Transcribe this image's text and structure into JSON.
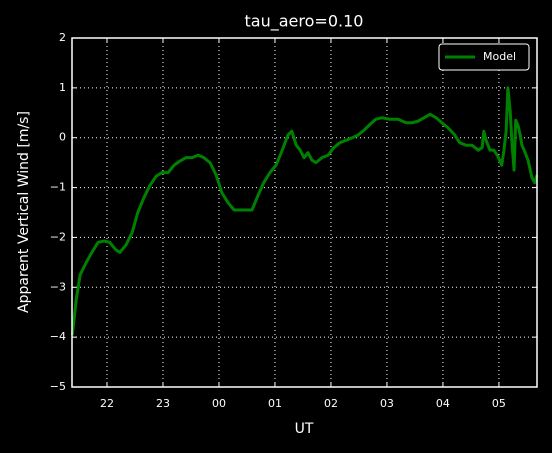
{
  "chart_data": {
    "type": "line",
    "title": "tau_aero=0.10",
    "xlabel": "UT",
    "ylabel": "Apparent Vertical Wind [m/s]",
    "x": [
      21.38,
      21.45,
      21.52,
      21.63,
      21.73,
      21.84,
      21.95,
      22.05,
      22.16,
      22.23,
      22.34,
      22.45,
      22.55,
      22.66,
      22.77,
      22.88,
      22.98,
      23.09,
      23.2,
      23.3,
      23.41,
      23.52,
      23.63,
      23.73,
      23.84,
      23.95,
      24.05,
      24.16,
      24.27,
      24.38,
      24.48,
      24.59,
      24.7,
      24.8,
      24.91,
      25.02,
      25.13,
      25.23,
      25.3,
      25.38,
      25.45,
      25.52,
      25.59,
      25.66,
      25.73,
      25.84,
      25.95,
      26.05,
      26.16,
      26.27,
      26.38,
      26.48,
      26.59,
      26.7,
      26.8,
      26.91,
      27.05,
      27.2,
      27.34,
      27.45,
      27.55,
      27.66,
      27.77,
      27.88,
      27.98,
      28.09,
      28.2,
      28.3,
      28.41,
      28.52,
      28.63,
      28.7,
      28.73,
      28.77,
      28.84,
      28.91,
      28.98,
      29.05,
      29.09,
      29.13,
      29.16,
      29.2,
      29.23,
      29.27,
      29.3,
      29.34,
      29.38,
      29.41,
      29.45,
      29.52,
      29.59,
      29.64,
      29.68
    ],
    "series": [
      {
        "name": "Model",
        "color": "#008000",
        "values": [
          -3.96,
          -3.25,
          -2.75,
          -2.5,
          -2.3,
          -2.1,
          -2.07,
          -2.1,
          -2.25,
          -2.3,
          -2.15,
          -1.9,
          -1.5,
          -1.2,
          -0.95,
          -0.77,
          -0.7,
          -0.7,
          -0.55,
          -0.47,
          -0.4,
          -0.4,
          -0.35,
          -0.4,
          -0.5,
          -0.75,
          -1.1,
          -1.3,
          -1.45,
          -1.45,
          -1.45,
          -1.45,
          -1.15,
          -0.9,
          -0.7,
          -0.55,
          -0.25,
          0.05,
          0.13,
          -0.15,
          -0.25,
          -0.4,
          -0.3,
          -0.45,
          -0.5,
          -0.4,
          -0.35,
          -0.2,
          -0.1,
          -0.05,
          0.0,
          0.05,
          0.15,
          0.27,
          0.37,
          0.4,
          0.37,
          0.37,
          0.3,
          0.3,
          0.33,
          0.4,
          0.47,
          0.4,
          0.3,
          0.2,
          0.07,
          -0.1,
          -0.15,
          -0.15,
          -0.25,
          -0.2,
          0.13,
          -0.05,
          -0.25,
          -0.25,
          -0.37,
          -0.55,
          -0.25,
          0.15,
          1.0,
          0.55,
          -0.05,
          -0.65,
          0.35,
          0.25,
          0.05,
          -0.15,
          -0.25,
          -0.45,
          -0.8,
          -0.9,
          -0.75
        ]
      }
    ],
    "xlim": [
      21.375,
      29.68
    ],
    "xticks": [
      22,
      23,
      {
        "value": 24,
        "label": "00"
      },
      {
        "value": 25,
        "label": "01"
      },
      {
        "value": 26,
        "label": "02"
      },
      {
        "value": 27,
        "label": "03"
      },
      {
        "value": 28,
        "label": "04"
      },
      {
        "value": 29,
        "label": "05"
      }
    ],
    "ylim": [
      -5,
      2
    ],
    "yticks": [
      {
        "value": -5,
        "label": "−5"
      },
      {
        "value": -4,
        "label": "−4"
      },
      {
        "value": -3,
        "label": "−3"
      },
      {
        "value": -2,
        "label": "−2"
      },
      {
        "value": -1,
        "label": "−1"
      },
      0,
      1,
      2
    ],
    "grid": true,
    "legend": "upper right"
  }
}
